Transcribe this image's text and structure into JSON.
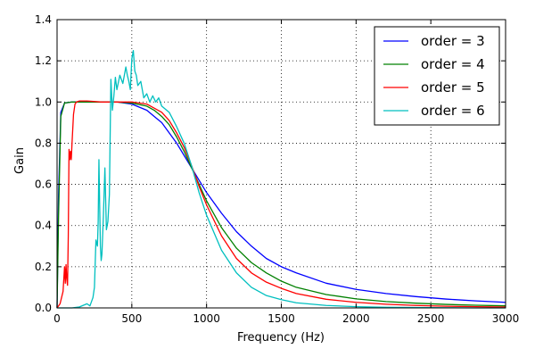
{
  "chart_data": {
    "type": "line",
    "xlabel": "Frequency (Hz)",
    "ylabel": "Gain",
    "xlim": [
      0,
      3000
    ],
    "ylim": [
      0.0,
      1.4
    ],
    "xticks": [
      0,
      500,
      1000,
      1500,
      2000,
      2500,
      3000
    ],
    "yticks": [
      0.0,
      0.2,
      0.4,
      0.6,
      0.8,
      1.0,
      1.2,
      1.4
    ],
    "xtick_labels": [
      "0",
      "500",
      "1000",
      "1500",
      "2000",
      "2500",
      "3000"
    ],
    "ytick_labels": [
      "0.0",
      "0.2",
      "0.4",
      "0.6",
      "0.8",
      "1.0",
      "1.2",
      "1.4"
    ],
    "grid": true,
    "legend_position": "top-right",
    "series": [
      {
        "name": "order = 3",
        "color": "#0000ff",
        "x": [
          0,
          10,
          25,
          50,
          100,
          200,
          300,
          400,
          500,
          600,
          650,
          700,
          750,
          800,
          850,
          900,
          950,
          1000,
          1100,
          1200,
          1300,
          1400,
          1500,
          1600,
          1800,
          2000,
          2200,
          2400,
          2600,
          2800,
          3000
        ],
        "y": [
          0.0,
          0.55,
          0.95,
          0.995,
          1.0,
          1.0,
          1.0,
          1.0,
          0.99,
          0.96,
          0.93,
          0.9,
          0.85,
          0.8,
          0.74,
          0.68,
          0.62,
          0.56,
          0.46,
          0.37,
          0.3,
          0.24,
          0.2,
          0.17,
          0.12,
          0.09,
          0.07,
          0.055,
          0.043,
          0.034,
          0.027
        ]
      },
      {
        "name": "order = 4",
        "color": "#008000",
        "x": [
          0,
          10,
          25,
          50,
          100,
          200,
          300,
          400,
          500,
          600,
          650,
          700,
          750,
          800,
          850,
          900,
          950,
          1000,
          1100,
          1200,
          1300,
          1400,
          1500,
          1600,
          1800,
          2000,
          2200,
          2400,
          2600,
          2800,
          3000
        ],
        "y": [
          0.0,
          0.45,
          0.93,
          0.995,
          1.0,
          1.0,
          1.0,
          1.0,
          0.995,
          0.98,
          0.96,
          0.93,
          0.89,
          0.83,
          0.76,
          0.68,
          0.6,
          0.52,
          0.39,
          0.29,
          0.22,
          0.17,
          0.13,
          0.1,
          0.065,
          0.044,
          0.031,
          0.023,
          0.017,
          0.013,
          0.01
        ]
      },
      {
        "name": "order = 5",
        "color": "#ff0000",
        "x": [
          0,
          20,
          40,
          50,
          55,
          60,
          65,
          70,
          75,
          80,
          85,
          90,
          95,
          100,
          110,
          120,
          130,
          150,
          200,
          300,
          400,
          500,
          600,
          650,
          700,
          750,
          800,
          850,
          900,
          950,
          1000,
          1100,
          1200,
          1300,
          1400,
          1500,
          1600,
          1800,
          2000,
          2200,
          2400,
          2600,
          2800,
          3000
        ],
        "y": [
          0.0,
          0.02,
          0.08,
          0.2,
          0.12,
          0.21,
          0.14,
          0.11,
          0.35,
          0.77,
          0.72,
          0.76,
          0.72,
          0.8,
          0.94,
          0.99,
          1.0,
          1.005,
          1.005,
          1.0,
          1.0,
          1.0,
          0.99,
          0.97,
          0.95,
          0.91,
          0.85,
          0.78,
          0.69,
          0.59,
          0.5,
          0.35,
          0.24,
          0.17,
          0.125,
          0.095,
          0.07,
          0.042,
          0.027,
          0.018,
          0.012,
          0.008,
          0.006,
          0.004
        ]
      },
      {
        "name": "order = 6",
        "color": "#00bfbf",
        "x": [
          0,
          50,
          100,
          150,
          200,
          220,
          240,
          250,
          260,
          270,
          275,
          280,
          285,
          290,
          295,
          300,
          310,
          320,
          330,
          340,
          350,
          360,
          370,
          380,
          390,
          400,
          420,
          440,
          460,
          470,
          480,
          490,
          500,
          510,
          520,
          530,
          540,
          560,
          580,
          600,
          620,
          640,
          660,
          680,
          700,
          750,
          800,
          850,
          900,
          950,
          1000,
          1100,
          1200,
          1300,
          1400,
          1500,
          1600,
          1800,
          2000,
          2200,
          2400,
          2600,
          2800,
          3000
        ],
        "y": [
          0.0,
          0.0,
          0.0,
          0.005,
          0.02,
          0.01,
          0.05,
          0.1,
          0.33,
          0.3,
          0.42,
          0.72,
          0.5,
          0.3,
          0.23,
          0.26,
          0.45,
          0.68,
          0.38,
          0.42,
          0.55,
          1.11,
          0.96,
          1.03,
          1.12,
          1.06,
          1.13,
          1.09,
          1.17,
          1.13,
          1.1,
          1.06,
          1.21,
          1.25,
          1.15,
          1.13,
          1.08,
          1.1,
          1.02,
          1.04,
          1.0,
          1.03,
          1.0,
          1.02,
          0.98,
          0.95,
          0.88,
          0.8,
          0.69,
          0.56,
          0.45,
          0.28,
          0.17,
          0.1,
          0.06,
          0.04,
          0.025,
          0.012,
          0.006,
          0.003,
          0.002,
          0.001,
          0.0,
          0.0
        ]
      }
    ]
  }
}
